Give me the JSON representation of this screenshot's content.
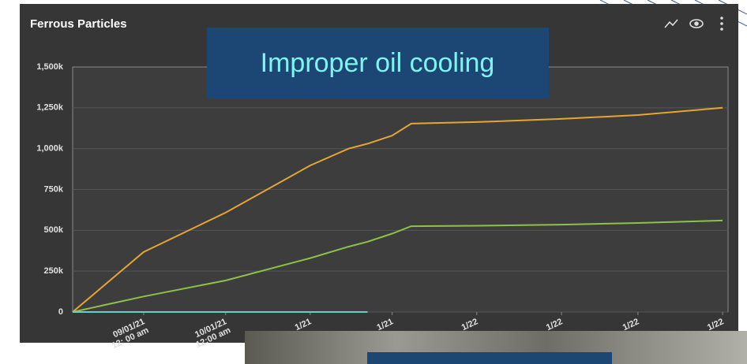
{
  "chart_data": {
    "type": "line",
    "title": "Ferrous Particles",
    "annotation": "Improper oil cooling",
    "x": [
      "08/06/21",
      "09/01/21",
      "10/01/21",
      "11/01/21",
      "11/15/21",
      "11/22/21",
      "12/01/21",
      "12/08/21",
      "01/01/22",
      "02/01/22",
      "03/01/22",
      "04/01/22"
    ],
    "series": [
      {
        "color": "#e5a631",
        "values": [
          0,
          367000,
          608000,
          897000,
          1000000,
          1030000,
          1080000,
          1153000,
          1163000,
          1182000,
          1206000,
          1250000
        ]
      },
      {
        "color": "#8dc149",
        "values": [
          0,
          95000,
          193000,
          330000,
          400000,
          430000,
          480000,
          525000,
          528000,
          535000,
          545000,
          560000
        ]
      },
      {
        "color": "#63d2c6",
        "values": [
          0,
          0,
          0,
          0,
          0,
          0,
          null,
          null,
          null,
          null,
          null,
          null
        ]
      }
    ],
    "xlim": [
      "08/06/21",
      "04/03/22"
    ],
    "xticks": [
      {
        "value": "09/01/21",
        "label": [
          "09/01/21",
          "12: 00 am"
        ]
      },
      {
        "value": "10/01/21",
        "label": [
          "10/01/21",
          "12:00 am"
        ]
      },
      {
        "value": "11/01/21",
        "label": [
          "1/21"
        ]
      },
      {
        "value": "12/01/21",
        "label": [
          "1/21"
        ]
      },
      {
        "value": "01/01/22",
        "label": [
          "1/22"
        ]
      },
      {
        "value": "02/01/22",
        "label": [
          "1/22"
        ]
      },
      {
        "value": "03/01/22",
        "label": [
          "1/22"
        ]
      },
      {
        "value": "04/01/22",
        "label": [
          "1/22"
        ]
      }
    ],
    "ylim": [
      0,
      1500000
    ],
    "yticks": [
      0,
      {
        "value": 250000,
        "label": "250k"
      },
      {
        "value": 500000,
        "label": "500k"
      },
      {
        "value": 750000,
        "label": "750k"
      },
      {
        "value": 1000000,
        "label": "1,000k"
      },
      {
        "value": 1250000,
        "label": "1,250k"
      },
      {
        "value": 1500000,
        "label": "1,500k"
      }
    ],
    "grid": true
  }
}
